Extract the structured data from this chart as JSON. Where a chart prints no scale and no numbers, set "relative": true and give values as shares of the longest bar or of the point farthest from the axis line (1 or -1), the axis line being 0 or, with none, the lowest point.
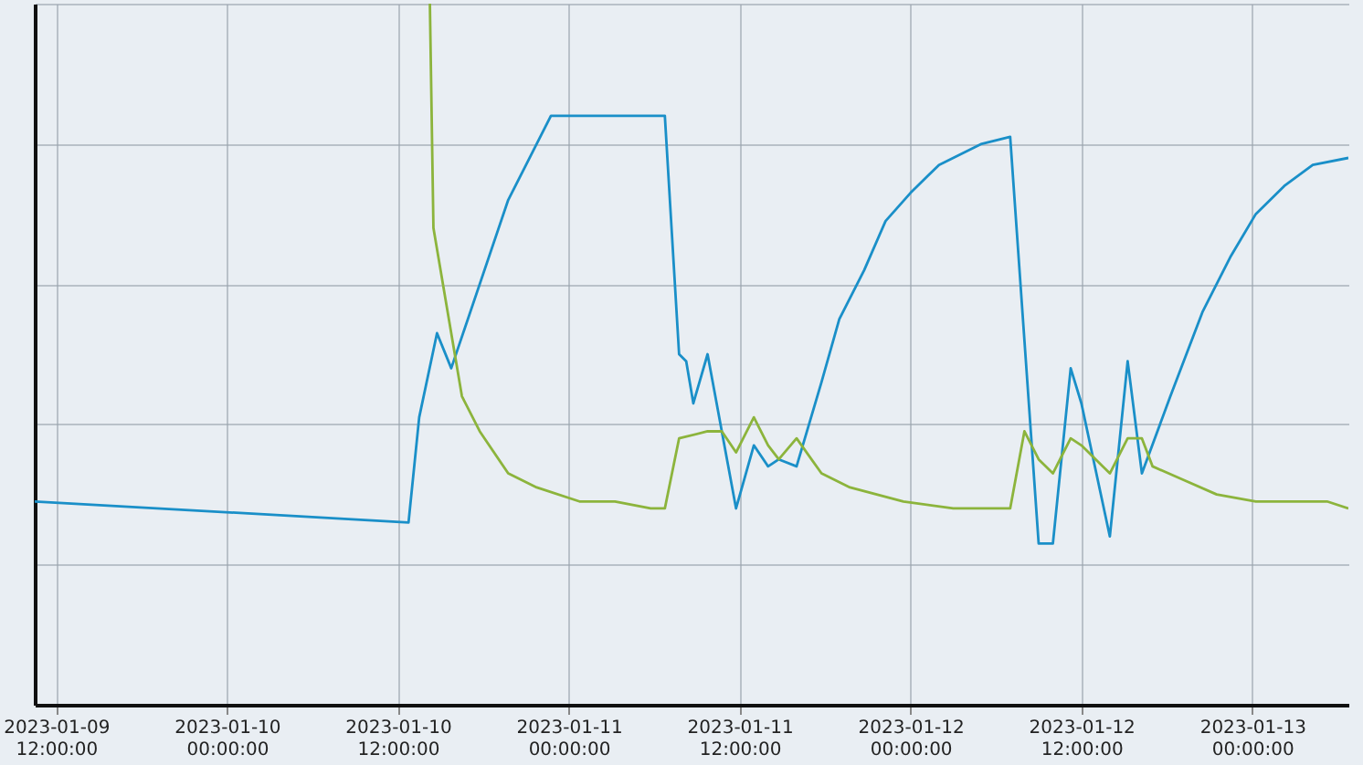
{
  "chart_data": {
    "type": "line",
    "relative": true,
    "grid": true,
    "legend": false,
    "marker": "none",
    "line_style": "solid",
    "xlim": [
      "2023-01-09T10:30",
      "2023-01-13T06:45"
    ],
    "xticks": [
      {
        "value": "2023-01-09T12:00",
        "label": "2023-01-09 12:00:00"
      },
      {
        "value": "2023-01-10T00:00",
        "label": "2023-01-10 00:00:00"
      },
      {
        "value": "2023-01-10T12:00",
        "label": "2023-01-10 12:00:00"
      },
      {
        "value": "2023-01-11T00:00",
        "label": "2023-01-11 00:00:00"
      },
      {
        "value": "2023-01-11T12:00",
        "label": "2023-01-11 12:00:00"
      },
      {
        "value": "2023-01-12T00:00",
        "label": "2023-01-12 00:00:00"
      },
      {
        "value": "2023-01-12T12:00",
        "label": "2023-01-12 12:00:00"
      },
      {
        "value": "2023-01-13T00:00",
        "label": "2023-01-13 00:00:00"
      }
    ],
    "series": [
      {
        "color": "#1a8fc8",
        "x": [
          "2023-01-09T10:30",
          "2023-01-10T12:45",
          "2023-01-10T13:30",
          "2023-01-10T14:45",
          "2023-01-10T15:45",
          "2023-01-10T19:45",
          "2023-01-10T22:45",
          "2023-01-10T23:45",
          "2023-01-11T00:45",
          "2023-01-11T02:45",
          "2023-01-11T04:45",
          "2023-01-11T06:45",
          "2023-01-11T07:45",
          "2023-01-11T08:15",
          "2023-01-11T08:45",
          "2023-01-11T09:45",
          "2023-01-11T11:45",
          "2023-01-11T13:00",
          "2023-01-11T14:00",
          "2023-01-11T14:45",
          "2023-01-11T16:00",
          "2023-01-11T17:45",
          "2023-01-11T19:00",
          "2023-01-11T20:45",
          "2023-01-11T22:15",
          "2023-01-12T00:00",
          "2023-01-12T02:00",
          "2023-01-12T05:00",
          "2023-01-12T07:00",
          "2023-01-12T09:00",
          "2023-01-12T10:00",
          "2023-01-12T11:15",
          "2023-01-12T12:00",
          "2023-01-12T14:00",
          "2023-01-12T15:15",
          "2023-01-12T16:15",
          "2023-01-12T18:15",
          "2023-01-12T20:30",
          "2023-01-12T22:30",
          "2023-01-13T00:15",
          "2023-01-13T02:15",
          "2023-01-13T04:15",
          "2023-01-13T06:45"
        ],
        "values": [
          0.29,
          0.26,
          0.41,
          0.53,
          0.48,
          0.72,
          0.84,
          0.84,
          0.84,
          0.84,
          0.84,
          0.84,
          0.5,
          0.49,
          0.43,
          0.5,
          0.28,
          0.37,
          0.34,
          0.35,
          0.34,
          0.46,
          0.55,
          0.62,
          0.69,
          0.73,
          0.77,
          0.8,
          0.81,
          0.23,
          0.23,
          0.48,
          0.43,
          0.24,
          0.49,
          0.33,
          0.44,
          0.56,
          0.64,
          0.7,
          0.74,
          0.77,
          0.78
        ]
      },
      {
        "color": "#8cb43c",
        "x": [
          "2023-01-10T14:15",
          "2023-01-10T14:30",
          "2023-01-10T15:30",
          "2023-01-10T16:30",
          "2023-01-10T17:45",
          "2023-01-10T19:45",
          "2023-01-10T21:45",
          "2023-01-11T00:45",
          "2023-01-11T03:15",
          "2023-01-11T05:45",
          "2023-01-11T06:45",
          "2023-01-11T07:45",
          "2023-01-11T09:45",
          "2023-01-11T10:45",
          "2023-01-11T11:45",
          "2023-01-11T13:00",
          "2023-01-11T14:00",
          "2023-01-11T14:45",
          "2023-01-11T16:00",
          "2023-01-11T17:45",
          "2023-01-11T19:45",
          "2023-01-11T23:30",
          "2023-01-12T03:00",
          "2023-01-12T04:00",
          "2023-01-12T07:00",
          "2023-01-12T08:00",
          "2023-01-12T09:00",
          "2023-01-12T10:00",
          "2023-01-12T11:15",
          "2023-01-12T12:00",
          "2023-01-12T14:00",
          "2023-01-12T15:15",
          "2023-01-12T16:15",
          "2023-01-12T17:00",
          "2023-01-12T19:15",
          "2023-01-12T21:30",
          "2023-01-13T00:15",
          "2023-01-13T05:15",
          "2023-01-13T06:45"
        ],
        "values": [
          1.0,
          0.68,
          0.56,
          0.44,
          0.39,
          0.33,
          0.31,
          0.29,
          0.29,
          0.28,
          0.28,
          0.38,
          0.39,
          0.39,
          0.36,
          0.41,
          0.37,
          0.35,
          0.38,
          0.33,
          0.31,
          0.29,
          0.28,
          0.28,
          0.28,
          0.39,
          0.35,
          0.33,
          0.38,
          0.37,
          0.33,
          0.38,
          0.38,
          0.34,
          0.32,
          0.3,
          0.29,
          0.29,
          0.28
        ]
      }
    ]
  }
}
